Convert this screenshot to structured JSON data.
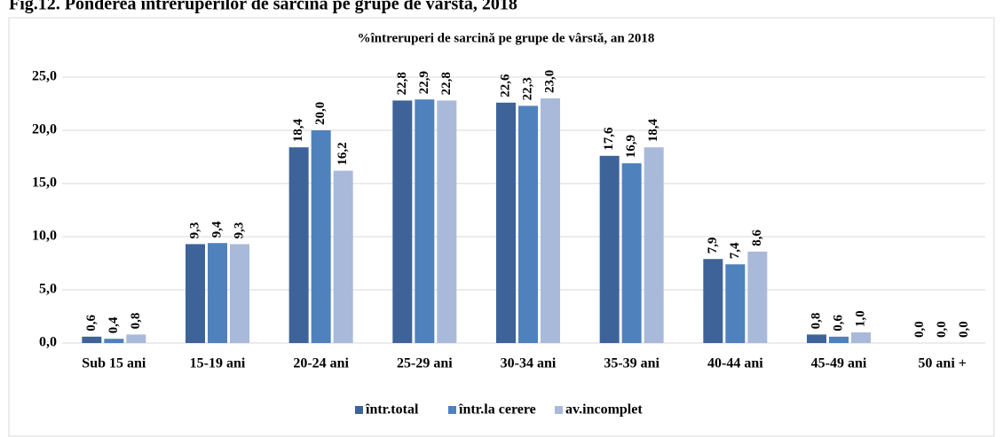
{
  "chart_data": {
    "type": "bar",
    "figure_title": "Fig.12. Ponderea întreruperilor de sarcină pe grupe de vârstă, 2018",
    "title": "%întreruperi de sarcină pe grupe de vârstă, an 2018",
    "categories": [
      "Sub 15 ani",
      "15-19 ani",
      "20-24 ani",
      "25-29 ani",
      "30-34 ani",
      "35-39 ani",
      "40-44 ani",
      "45-49 ani",
      "50 ani +"
    ],
    "series": [
      {
        "name": "într.total",
        "color": "#3e6399",
        "values": [
          0.6,
          9.3,
          18.4,
          22.8,
          22.6,
          17.6,
          7.9,
          0.8,
          0.0
        ],
        "value_labels": [
          "0,6",
          "9,3",
          "18,4",
          "22,8",
          "22,6",
          "17,6",
          "7,9",
          "0,8",
          "0,0"
        ]
      },
      {
        "name": "într.la cerere",
        "color": "#4f81bd",
        "values": [
          0.4,
          9.4,
          20.0,
          22.9,
          22.3,
          16.9,
          7.4,
          0.6,
          0.0
        ],
        "value_labels": [
          "0,4",
          "9,4",
          "20,0",
          "22,9",
          "22,3",
          "16,9",
          "7,4",
          "0,6",
          "0,0"
        ]
      },
      {
        "name": "av.incomplet",
        "color": "#a9b9d9",
        "values": [
          0.8,
          9.3,
          16.2,
          22.8,
          23.0,
          18.4,
          8.6,
          1.0,
          0.0
        ],
        "value_labels": [
          "0,8",
          "9,3",
          "16,2",
          "22,8",
          "23,0",
          "18,4",
          "8,6",
          "1,0",
          "0,0"
        ]
      }
    ],
    "ylim": [
      0,
      25
    ],
    "yticks": [
      {
        "value": 0,
        "label": "0,0"
      },
      {
        "value": 5,
        "label": "5,0"
      },
      {
        "value": 10,
        "label": "10,0"
      },
      {
        "value": 15,
        "label": "15,0"
      },
      {
        "value": 20,
        "label": "20,0"
      },
      {
        "value": 25,
        "label": "25,0"
      }
    ],
    "grid": true,
    "legend": "bottom"
  }
}
